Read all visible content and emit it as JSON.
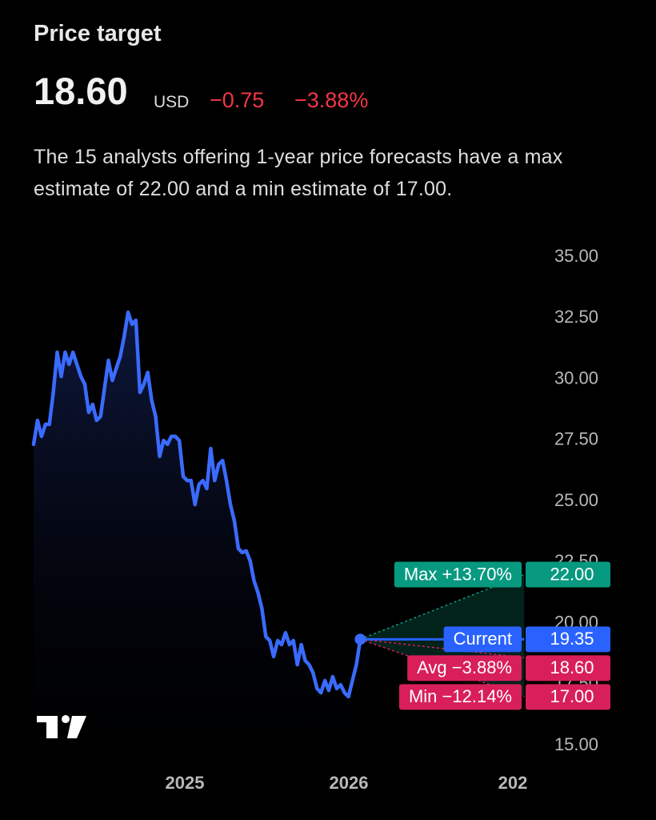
{
  "header": {
    "title": "Price target",
    "price": "18.60",
    "currency": "USD",
    "change": "−0.75",
    "change_percent": "−3.88%",
    "description": "The 15 analysts offering 1-year price forecasts have a max estimate of 22.00 and a min estimate of 17.00."
  },
  "chart_data": {
    "type": "line",
    "xlim": [
      2023.873,
      2027.873
    ],
    "xticks": [
      2025,
      2026,
      {
        "value": 2027,
        "label": "202"
      }
    ],
    "ylim": [
      14,
      36
    ],
    "yticks": [
      {
        "value": 15,
        "label": "15.00"
      },
      {
        "value": 17.5,
        "label": "17.50"
      },
      {
        "value": 20,
        "label": "20.00"
      },
      {
        "value": 22.5,
        "label": "22.50"
      },
      {
        "value": 25,
        "label": "25.00"
      },
      {
        "value": 27.5,
        "label": "27.50"
      },
      {
        "value": 30,
        "label": "30.00"
      },
      {
        "value": 32.5,
        "label": "32.50"
      },
      {
        "value": 35,
        "label": "35.00"
      }
    ],
    "series": [
      {
        "color": "#3a6bff",
        "x": [
          2024.078,
          2024.102,
          2024.126,
          2024.15,
          2024.174,
          2024.198,
          2024.222,
          2024.246,
          2024.27,
          2024.294,
          2024.318,
          2024.342,
          2024.366,
          2024.39,
          2024.414,
          2024.438,
          2024.462,
          2024.486,
          2024.51,
          2024.534,
          2024.558,
          2024.582,
          2024.606,
          2024.63,
          2024.654,
          2024.678,
          2024.702,
          2024.726,
          2024.75,
          2024.774,
          2024.798,
          2024.822,
          2024.846,
          2024.87,
          2024.894,
          2024.918,
          2024.942,
          2024.966,
          2024.99,
          2025.014,
          2025.038,
          2025.062,
          2025.086,
          2025.11,
          2025.134,
          2025.158,
          2025.182,
          2025.206,
          2025.23,
          2025.254,
          2025.278,
          2025.302,
          2025.326,
          2025.35,
          2025.374,
          2025.398,
          2025.422,
          2025.446,
          2025.47,
          2025.494,
          2025.518,
          2025.542,
          2025.566,
          2025.59,
          2025.614,
          2025.638,
          2025.662,
          2025.686,
          2025.71,
          2025.734,
          2025.758,
          2025.782,
          2025.806,
          2025.83,
          2025.854,
          2025.878,
          2025.902,
          2025.926,
          2025.95,
          2025.974,
          2025.998,
          2026.022,
          2026.046,
          2026.07
        ],
        "values": [
          27.33,
          28.31,
          27.66,
          28.15,
          28.15,
          29.46,
          31.1,
          30.11,
          31.1,
          30.61,
          31.1,
          30.61,
          30.11,
          29.79,
          28.64,
          28.97,
          28.31,
          28.48,
          29.62,
          30.77,
          29.95,
          30.44,
          30.93,
          31.75,
          32.74,
          32.25,
          32.41,
          29.46,
          29.79,
          30.28,
          29.13,
          28.48,
          26.84,
          27.49,
          27.33,
          27.66,
          27.66,
          27.49,
          26.02,
          25.85,
          25.85,
          24.87,
          25.69,
          25.85,
          25.52,
          27.16,
          25.85,
          26.51,
          26.67,
          25.85,
          24.87,
          24.21,
          23.07,
          22.9,
          22.97,
          22.57,
          21.75,
          21.26,
          20.61,
          19.46,
          19.3,
          18.64,
          19.3,
          19.13,
          19.62,
          19.13,
          19.3,
          18.31,
          19.13,
          18.48,
          18.31,
          17.98,
          17.33,
          17.16,
          17.66,
          17.26,
          17.82,
          17.33,
          17.49,
          17.16,
          17.0,
          17.66,
          18.31,
          19.35
        ]
      }
    ],
    "current": {
      "label": "Current",
      "value_label": "19.35",
      "color": "#2962ff"
    },
    "forecast": {
      "x": 2027.07,
      "labels": [
        "Max +13.70%",
        "Avg −3.88%",
        "Min −12.14%"
      ],
      "values": [
        22,
        18.6,
        17
      ],
      "value_labels": [
        "22.00",
        "18.60",
        "17.00"
      ],
      "colors": [
        "#089981",
        "#d81f5a",
        "#d81f5a"
      ]
    }
  }
}
